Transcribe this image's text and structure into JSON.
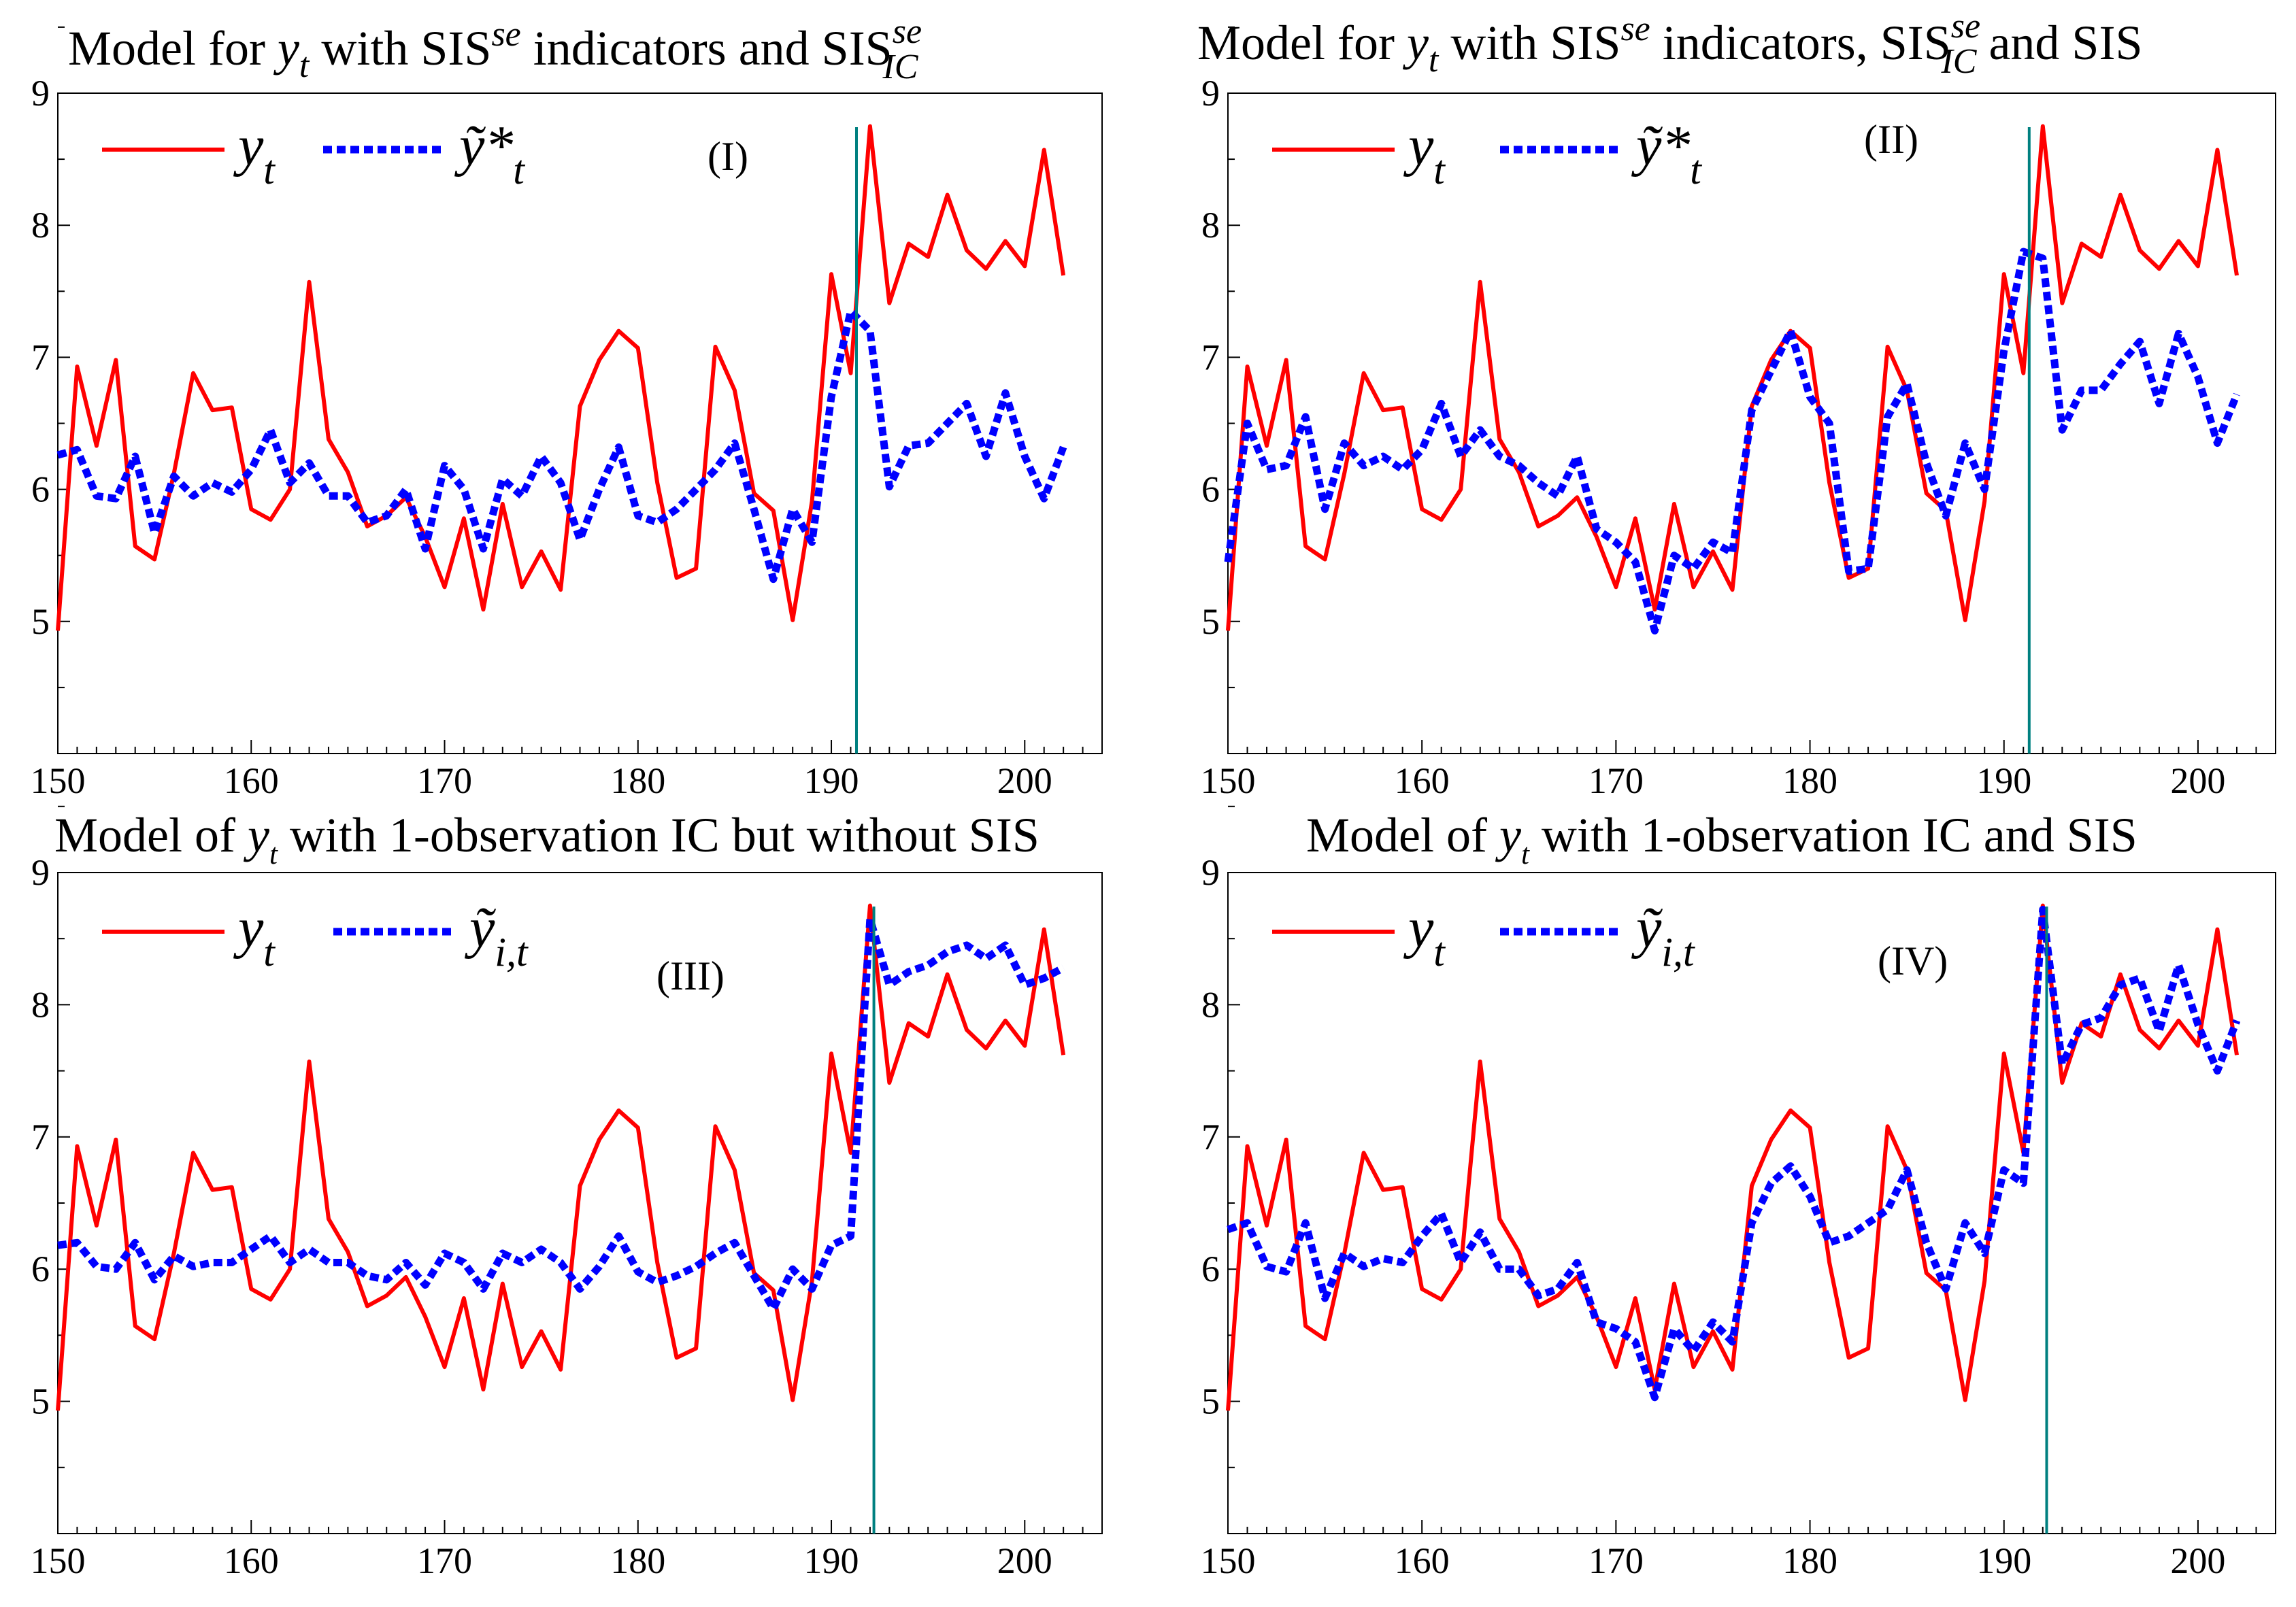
{
  "chart_data": [
    {
      "type": "line",
      "panel_label": "(I)",
      "title": {
        "pre": "Model for ",
        "y": "y",
        "y_sub": "t",
        "mid": " with SIS",
        "sup1": "se",
        "mid2": " indicators and SIS",
        "sup2": "se",
        "sub2": "IC",
        "end": ""
      },
      "legend": [
        {
          "name": "y",
          "sub": "t",
          "style": "solid",
          "color": "#ff0000"
        },
        {
          "name": "ỹ*",
          "sub": "t",
          "style": "dotted",
          "color": "#0000ff"
        }
      ],
      "xlim": [
        150,
        204
      ],
      "ylim": [
        4,
        9
      ],
      "xticks": [
        "150",
        "160",
        "170",
        "180",
        "190",
        "200"
      ],
      "yticks": [
        "5",
        "6",
        "7",
        "8",
        "9"
      ],
      "vline_x": 191.3,
      "x_start": 150,
      "series": [
        {
          "name": "y_t",
          "values": [
            4.93,
            6.93,
            6.33,
            6.98,
            5.57,
            5.47,
            6.12,
            6.88,
            6.6,
            6.62,
            5.85,
            5.77,
            6.0,
            7.57,
            6.38,
            6.13,
            5.72,
            5.8,
            5.94,
            5.64,
            5.26,
            5.78,
            5.09,
            5.89,
            5.26,
            5.53,
            5.24,
            6.63,
            6.98,
            7.2,
            7.07,
            6.05,
            5.33,
            5.4,
            7.08,
            6.75,
            5.97,
            5.84,
            5.01,
            5.91,
            7.63,
            6.88,
            8.75,
            7.41,
            7.86,
            7.76,
            8.23,
            7.81,
            7.67,
            7.88,
            7.69,
            8.57,
            7.62
          ]
        },
        {
          "name": "ỹ*_t",
          "values": [
            6.26,
            6.3,
            5.95,
            5.93,
            6.25,
            5.67,
            6.1,
            5.95,
            6.05,
            5.98,
            6.15,
            6.45,
            6.05,
            6.2,
            5.95,
            5.95,
            5.75,
            5.8,
            6.0,
            5.55,
            6.18,
            6.0,
            5.55,
            6.08,
            5.95,
            6.25,
            6.05,
            5.62,
            6.0,
            6.32,
            5.8,
            5.75,
            5.85,
            6.0,
            6.15,
            6.35,
            5.85,
            5.32,
            5.85,
            5.6,
            6.7,
            7.35,
            7.2,
            6.02,
            6.33,
            6.35,
            6.5,
            6.65,
            6.25,
            6.73,
            6.25,
            5.93,
            6.32
          ]
        }
      ]
    },
    {
      "type": "line",
      "panel_label": "(II)",
      "title": {
        "pre": "Model for ",
        "y": "y",
        "y_sub": "t",
        "mid": " with SIS",
        "sup1": "se",
        "mid2": " indicators, SIS",
        "sup2": "se",
        "sub2": "IC",
        "end": " and SIS"
      },
      "legend": [
        {
          "name": "y",
          "sub": "t",
          "style": "solid",
          "color": "#ff0000"
        },
        {
          "name": "ỹ*",
          "sub": "t",
          "style": "dotted",
          "color": "#0000ff"
        }
      ],
      "xlim": [
        150,
        204
      ],
      "ylim": [
        4,
        9
      ],
      "xticks": [
        "150",
        "160",
        "170",
        "180",
        "190",
        "200"
      ],
      "yticks": [
        "5",
        "6",
        "7",
        "8",
        "9"
      ],
      "vline_x": 191.3,
      "x_start": 150,
      "series": [
        {
          "name": "y_t",
          "values": [
            4.93,
            6.93,
            6.33,
            6.98,
            5.57,
            5.47,
            6.12,
            6.88,
            6.6,
            6.62,
            5.85,
            5.77,
            6.0,
            7.57,
            6.38,
            6.13,
            5.72,
            5.8,
            5.94,
            5.64,
            5.26,
            5.78,
            5.09,
            5.89,
            5.26,
            5.53,
            5.24,
            6.63,
            6.98,
            7.2,
            7.07,
            6.05,
            5.33,
            5.4,
            7.08,
            6.75,
            5.97,
            5.84,
            5.01,
            5.91,
            7.63,
            6.88,
            8.75,
            7.41,
            7.86,
            7.76,
            8.23,
            7.81,
            7.67,
            7.88,
            7.69,
            8.57,
            7.62
          ]
        },
        {
          "name": "ỹ*_t",
          "values": [
            5.45,
            6.5,
            6.15,
            6.18,
            6.55,
            5.85,
            6.35,
            6.18,
            6.25,
            6.15,
            6.3,
            6.65,
            6.25,
            6.45,
            6.25,
            6.18,
            6.05,
            5.95,
            6.25,
            5.7,
            5.6,
            5.45,
            4.93,
            5.5,
            5.4,
            5.6,
            5.52,
            6.6,
            6.9,
            7.2,
            6.7,
            6.5,
            5.38,
            5.4,
            6.55,
            6.8,
            6.2,
            5.8,
            6.35,
            6.0,
            7.05,
            7.8,
            7.75,
            6.45,
            6.75,
            6.75,
            6.95,
            7.12,
            6.65,
            7.18,
            6.85,
            6.35,
            6.72
          ]
        }
      ]
    },
    {
      "type": "line",
      "panel_label": "(III)",
      "title": {
        "pre": "Model of ",
        "y": "y",
        "y_sub": "t",
        "mid": " with 1-observation IC but without SIS",
        "sup1": "",
        "mid2": "",
        "sup2": "",
        "sub2": "",
        "end": ""
      },
      "legend": [
        {
          "name": "y",
          "sub": "t",
          "style": "solid",
          "color": "#ff0000"
        },
        {
          "name": "ỹ",
          "sub": "i,t",
          "style": "dotted",
          "color": "#0000ff"
        }
      ],
      "xlim": [
        150,
        204
      ],
      "ylim": [
        4,
        9
      ],
      "xticks": [
        "150",
        "160",
        "170",
        "180",
        "190",
        "200"
      ],
      "yticks": [
        "5",
        "6",
        "7",
        "8",
        "9"
      ],
      "vline_x": 192.2,
      "x_start": 150,
      "series": [
        {
          "name": "y_t",
          "values": [
            4.93,
            6.93,
            6.33,
            6.98,
            5.57,
            5.47,
            6.12,
            6.88,
            6.6,
            6.62,
            5.85,
            5.77,
            6.0,
            7.57,
            6.38,
            6.13,
            5.72,
            5.8,
            5.94,
            5.64,
            5.26,
            5.78,
            5.09,
            5.89,
            5.26,
            5.53,
            5.24,
            6.63,
            6.98,
            7.2,
            7.07,
            6.05,
            5.33,
            5.4,
            7.08,
            6.75,
            5.97,
            5.84,
            5.01,
            5.91,
            7.63,
            6.88,
            8.75,
            7.41,
            7.86,
            7.76,
            8.23,
            7.81,
            7.67,
            7.88,
            7.69,
            8.57,
            7.62
          ]
        },
        {
          "name": "ỹ_i,t",
          "values": [
            6.18,
            6.2,
            6.02,
            6.0,
            6.2,
            5.92,
            6.1,
            6.02,
            6.05,
            6.05,
            6.15,
            6.25,
            6.05,
            6.15,
            6.05,
            6.05,
            5.95,
            5.92,
            6.05,
            5.88,
            6.12,
            6.05,
            5.85,
            6.12,
            6.05,
            6.15,
            6.05,
            5.85,
            6.02,
            6.25,
            5.98,
            5.9,
            5.95,
            6.02,
            6.12,
            6.2,
            5.95,
            5.7,
            6.0,
            5.85,
            6.18,
            6.25,
            8.65,
            8.15,
            8.25,
            8.3,
            8.4,
            8.45,
            8.35,
            8.45,
            8.15,
            8.2,
            8.28
          ]
        }
      ]
    },
    {
      "type": "line",
      "panel_label": "(IV)",
      "title": {
        "pre": "Model of ",
        "y": "y",
        "y_sub": "t",
        "mid": " with 1-observation IC and SIS",
        "sup1": "",
        "mid2": "",
        "sup2": "",
        "sub2": "",
        "end": ""
      },
      "legend": [
        {
          "name": "y",
          "sub": "t",
          "style": "solid",
          "color": "#ff0000"
        },
        {
          "name": "ỹ",
          "sub": "i,t",
          "style": "dotted",
          "color": "#0000ff"
        }
      ],
      "xlim": [
        150,
        204
      ],
      "ylim": [
        4,
        9
      ],
      "xticks": [
        "150",
        "160",
        "170",
        "180",
        "190",
        "200"
      ],
      "yticks": [
        "5",
        "6",
        "7",
        "8",
        "9"
      ],
      "vline_x": 192.2,
      "x_start": 150,
      "series": [
        {
          "name": "y_t",
          "values": [
            4.93,
            6.93,
            6.33,
            6.98,
            5.57,
            5.47,
            6.12,
            6.88,
            6.6,
            6.62,
            5.85,
            5.77,
            6.0,
            7.57,
            6.38,
            6.13,
            5.72,
            5.8,
            5.94,
            5.64,
            5.26,
            5.78,
            5.09,
            5.89,
            5.26,
            5.53,
            5.24,
            6.63,
            6.98,
            7.2,
            7.07,
            6.05,
            5.33,
            5.4,
            7.08,
            6.75,
            5.97,
            5.84,
            5.01,
            5.91,
            7.63,
            6.88,
            8.75,
            7.41,
            7.86,
            7.76,
            8.23,
            7.81,
            7.67,
            7.88,
            7.69,
            8.57,
            7.62
          ]
        },
        {
          "name": "ỹ_i,t",
          "values": [
            6.3,
            6.35,
            6.02,
            5.98,
            6.35,
            5.78,
            6.12,
            6.02,
            6.08,
            6.05,
            6.25,
            6.42,
            6.05,
            6.28,
            6.0,
            6.0,
            5.8,
            5.85,
            6.05,
            5.6,
            5.55,
            5.45,
            5.03,
            5.55,
            5.38,
            5.6,
            5.45,
            6.35,
            6.65,
            6.78,
            6.55,
            6.2,
            6.25,
            6.35,
            6.45,
            6.75,
            6.2,
            5.85,
            6.35,
            6.12,
            6.75,
            6.65,
            8.72,
            7.55,
            7.85,
            7.9,
            8.15,
            8.2,
            7.8,
            8.3,
            7.85,
            7.5,
            7.88
          ]
        }
      ]
    }
  ]
}
